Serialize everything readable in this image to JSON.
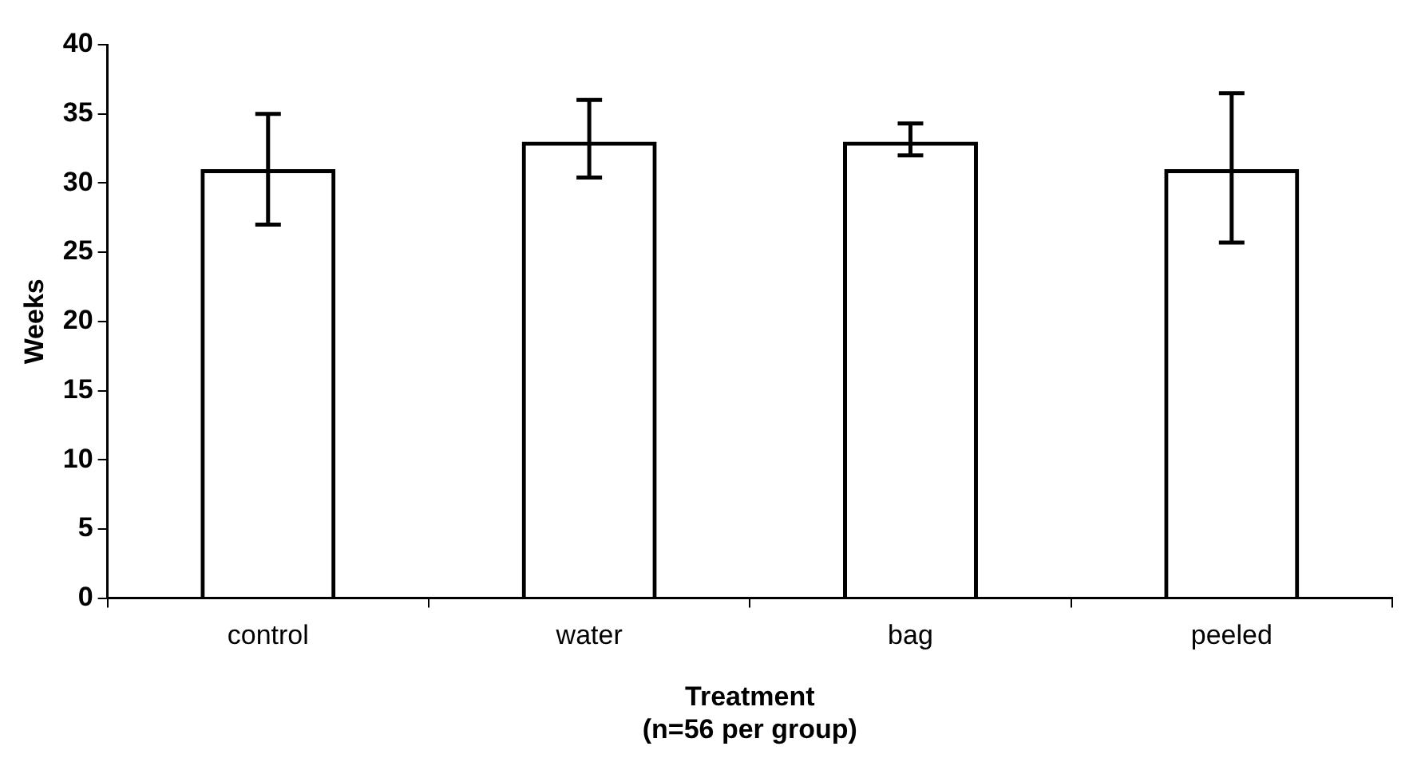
{
  "chart_data": {
    "type": "bar",
    "xlabel": "Treatment\n(n=56 per group)",
    "ylabel": "Weeks",
    "categories": [
      "control",
      "water",
      "bag",
      "peeled"
    ],
    "values": [
      31,
      33,
      33,
      31
    ],
    "color": "#000000",
    "errors": [
      [
        27,
        35
      ],
      [
        30.4,
        36
      ],
      [
        32,
        34.3
      ],
      [
        25.7,
        36.5
      ]
    ],
    "ylim": [
      0,
      40
    ],
    "yticks": [
      0,
      5,
      10,
      15,
      20,
      25,
      30,
      35,
      40
    ],
    "grid": false,
    "legend": false
  }
}
